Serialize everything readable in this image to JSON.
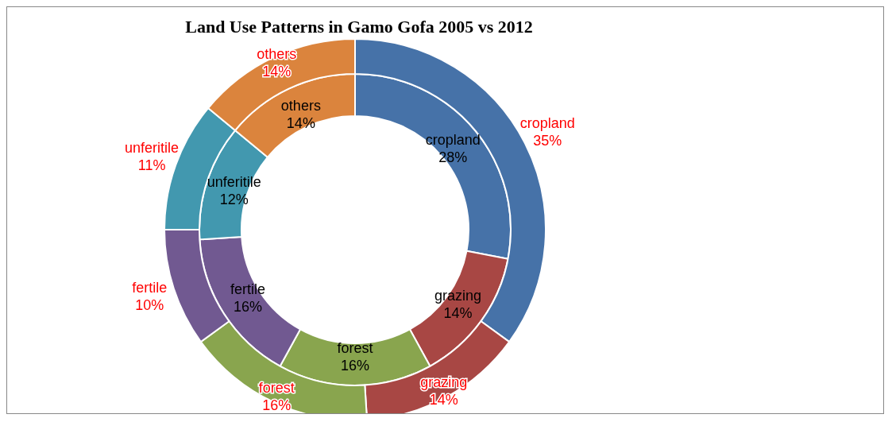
{
  "chart_data": {
    "type": "donut",
    "title": "Land Use Patterns in Gamo Gofa 2005 vs 2012",
    "categories": [
      "cropland",
      "grazing",
      "forest",
      "fertile",
      "unferitile",
      "others"
    ],
    "colors": [
      "#4672a8",
      "#a84744",
      "#89a54e",
      "#715991",
      "#4298af",
      "#db843d"
    ],
    "series": [
      {
        "values": [
          28,
          14,
          16,
          16,
          12,
          14
        ],
        "value_labels": [
          "28%",
          "14%",
          "16%",
          "16%",
          "12%",
          "14%"
        ]
      },
      {
        "values": [
          35,
          14,
          16,
          10,
          11,
          14
        ],
        "value_labels": [
          "35%",
          "14%",
          "16%",
          "10%",
          "11%",
          "14%"
        ]
      }
    ],
    "data_labels": true,
    "legend": false
  }
}
